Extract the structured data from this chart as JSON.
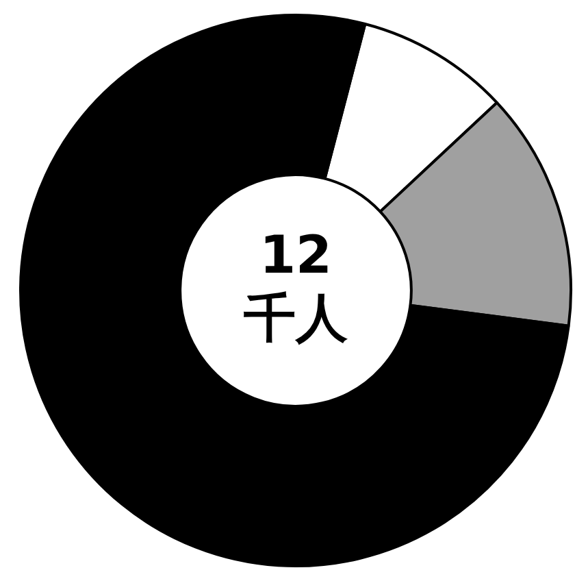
{
  "chart_data": {
    "type": "donut",
    "categories": [
      null,
      null,
      null
    ],
    "values": [
      9,
      14,
      77
    ],
    "colors": [
      "#ffffff",
      "#a0a0a0",
      "#000000"
    ],
    "annotations": [
      "12",
      "千人"
    ],
    "legend": false
  }
}
